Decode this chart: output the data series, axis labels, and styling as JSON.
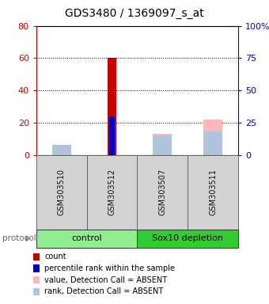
{
  "title": "GDS3480 / 1369097_s_at",
  "samples": [
    "GSM303510",
    "GSM303512",
    "GSM303507",
    "GSM303511"
  ],
  "groups": [
    {
      "name": "control",
      "color": "#90EE90",
      "start": 0,
      "end": 1
    },
    {
      "name": "Sox10 depletion",
      "color": "#32CD32",
      "start": 2,
      "end": 3
    }
  ],
  "count_values": [
    0,
    60,
    0,
    0
  ],
  "percentile_values": [
    0,
    30,
    0,
    0
  ],
  "absent_value_values": [
    5,
    0,
    13,
    22
  ],
  "absent_rank_values": [
    8,
    0,
    15,
    18
  ],
  "left_ylim": [
    0,
    80
  ],
  "right_ylim": [
    0,
    100
  ],
  "left_yticks": [
    0,
    20,
    40,
    60,
    80
  ],
  "right_yticks": [
    0,
    25,
    50,
    75,
    100
  ],
  "right_yticklabels": [
    "0",
    "25",
    "50",
    "75",
    "100%"
  ],
  "left_ycolor": "#cc0000",
  "right_ycolor": "#0000cc",
  "bg_color": "#ffffff",
  "count_color": "#cc0000",
  "percentile_color": "#0000cc",
  "absent_value_color": "#ffb6b6",
  "absent_rank_color": "#b0c4de",
  "legend_items": [
    {
      "color": "#cc0000",
      "label": "count"
    },
    {
      "color": "#0000cc",
      "label": "percentile rank within the sample"
    },
    {
      "color": "#ffb6b6",
      "label": "value, Detection Call = ABSENT"
    },
    {
      "color": "#b0c4de",
      "label": "rank, Detection Call = ABSENT"
    }
  ],
  "protocol_label": "protocol",
  "title_fontsize": 10,
  "tick_fontsize": 8,
  "sample_fontsize": 7,
  "group_fontsize": 8,
  "legend_fontsize": 7
}
